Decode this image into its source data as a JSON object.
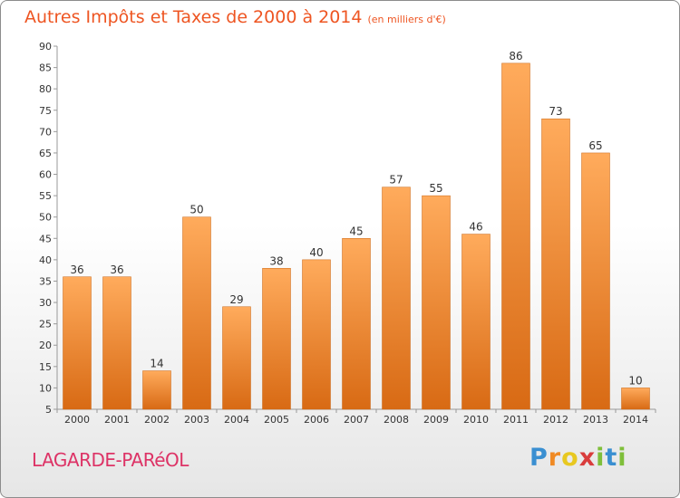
{
  "title": "Autres Impôts et Taxes de 2000 à 2014",
  "unit_note": "(en milliers d'€)",
  "commune": "LAGARDE-PARéOL",
  "logo": {
    "text": "Proxiti",
    "letters": [
      "P",
      "r",
      "o",
      "x",
      "i",
      "t",
      "i"
    ]
  },
  "colors": {
    "title": "#ee5522",
    "commune": "#dd3366",
    "bar_top": "#ffab5c",
    "bar_bottom": "#d86a14"
  },
  "chart_data": {
    "type": "bar",
    "title": "Autres Impôts et Taxes de 2000 à 2014",
    "subtitle": "(en milliers d'€)",
    "categories": [
      "2000",
      "2001",
      "2002",
      "2003",
      "2004",
      "2005",
      "2006",
      "2007",
      "2008",
      "2009",
      "2010",
      "2011",
      "2012",
      "2013",
      "2014"
    ],
    "values": [
      36,
      36,
      14,
      50,
      29,
      38,
      40,
      45,
      57,
      55,
      46,
      86,
      73,
      65,
      10
    ],
    "ylim": [
      5,
      90
    ],
    "yticks": [
      5,
      10,
      15,
      20,
      25,
      30,
      35,
      40,
      45,
      50,
      55,
      60,
      65,
      70,
      75,
      80,
      85,
      90
    ],
    "grid": false,
    "xlabel": "",
    "ylabel": ""
  }
}
